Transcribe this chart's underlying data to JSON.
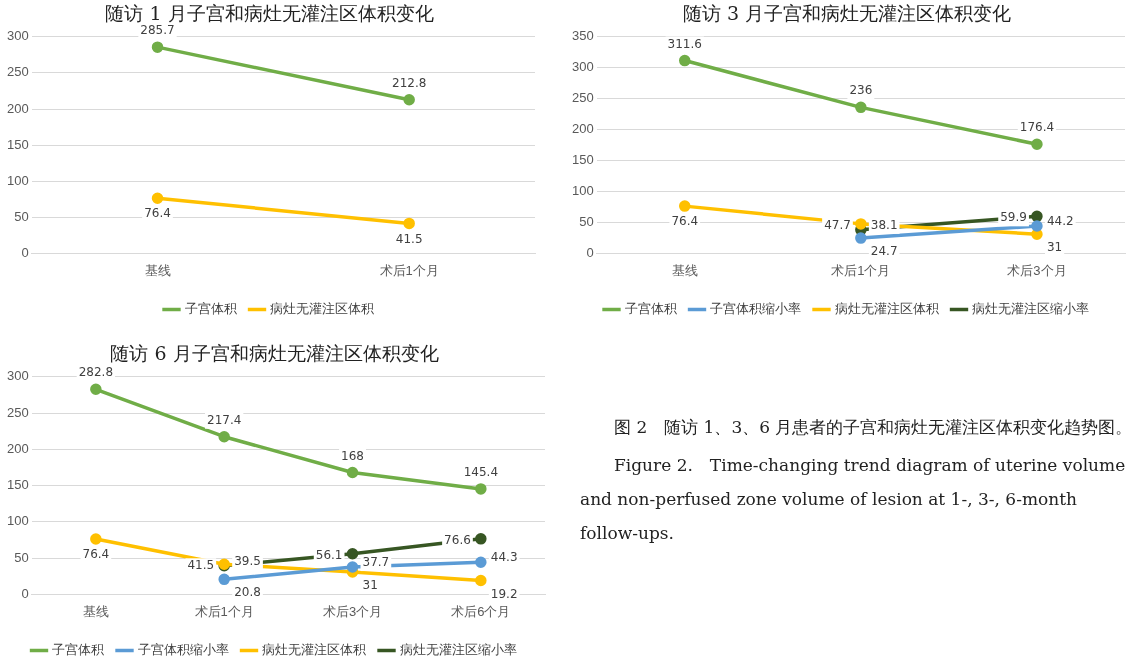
{
  "chart_data": [
    {
      "type": "line",
      "title": "随访 1 月子宫和病灶无灌注区体积变化",
      "categories": [
        "基线",
        "术后1个月"
      ],
      "series": [
        {
          "name": "子宫体积",
          "color": "#70ad47",
          "values": [
            285.7,
            212.8
          ]
        },
        {
          "name": "病灶无灌注区体积",
          "color": "#ffc000",
          "values": [
            76.4,
            41.5
          ]
        }
      ],
      "ylim": [
        0,
        300
      ],
      "yticks": [
        0,
        50,
        100,
        150,
        200,
        250,
        300
      ],
      "grid": "y",
      "legend": "bottom",
      "marker": "circle",
      "data_labels": true
    },
    {
      "type": "line",
      "title": "随访 3 月子宫和病灶无灌注区体积变化",
      "categories": [
        "基线",
        "术后1个月",
        "术后3个月"
      ],
      "series": [
        {
          "name": "子宫体积",
          "color": "#70ad47",
          "values": [
            311.6,
            236,
            176.4
          ]
        },
        {
          "name": "子宫体积缩小率",
          "color": "#5b9bd5",
          "values": [
            null,
            24.7,
            44.2
          ]
        },
        {
          "name": "病灶无灌注区体积",
          "color": "#ffc000",
          "values": [
            76.4,
            47.7,
            31
          ]
        },
        {
          "name": "病灶无灌注区缩小率",
          "color": "#375623",
          "values": [
            null,
            38.1,
            59.9
          ]
        }
      ],
      "ylim": [
        0,
        350
      ],
      "yticks": [
        0,
        50,
        100,
        150,
        200,
        250,
        300,
        350
      ],
      "grid": "y",
      "legend": "bottom",
      "marker": "circle",
      "data_labels": true
    },
    {
      "type": "line",
      "title": "随访 6 月子宫和病灶无灌注区体积变化",
      "categories": [
        "基线",
        "术后1个月",
        "术后3个月",
        "术后6个月"
      ],
      "series": [
        {
          "name": "子宫体积",
          "color": "#70ad47",
          "values": [
            282.8,
            217.4,
            168,
            145.4
          ]
        },
        {
          "name": "子宫体积缩小率",
          "color": "#5b9bd5",
          "values": [
            null,
            20.8,
            37.7,
            44.3
          ]
        },
        {
          "name": "病灶无灌注区体积",
          "color": "#ffc000",
          "values": [
            76.4,
            41.5,
            31,
            19.2
          ]
        },
        {
          "name": "病灶无灌注区缩小率",
          "color": "#375623",
          "values": [
            null,
            39.5,
            56.1,
            76.6
          ]
        }
      ],
      "ylim": [
        0,
        300
      ],
      "yticks": [
        0,
        50,
        100,
        150,
        200,
        250,
        300
      ],
      "grid": "y",
      "legend": "bottom",
      "marker": "circle",
      "data_labels": true
    },
    {
      "type": "other",
      "annotations": [
        "图 2　随访 1、3、6 月患者的子宫和病灶无灌注区体积变化趋势图。",
        "Figure 2.　Time-changing trend diagram of uterine volume and non-perfused zone volume of lesion at 1-, 3-, 6-month follow-ups."
      ]
    }
  ]
}
